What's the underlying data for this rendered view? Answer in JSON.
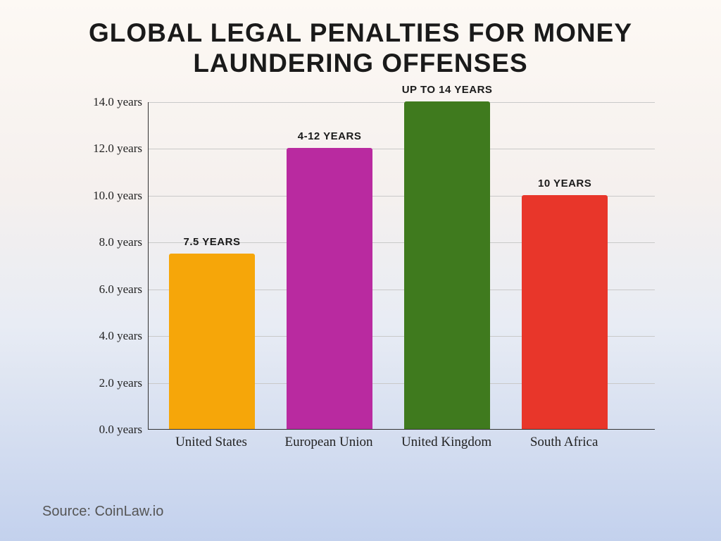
{
  "title": "Global Legal Penalties for Money Laundering Offenses",
  "title_fontsize": 37,
  "source": "Source: CoinLaw.io",
  "source_fontsize": 20,
  "chart": {
    "type": "bar",
    "ylim": [
      0,
      14
    ],
    "ytick_step": 2.0,
    "ytick_suffix": " years",
    "ylabel_fontsize": 17,
    "xlabel_fontsize": 19,
    "barlabel_fontsize": 15,
    "grid_color": "#c9c9c9",
    "axis_color": "#333333",
    "bar_width_pct": 17,
    "bar_gap_pct": 6.2,
    "bar_start_pct": 4,
    "bars": [
      {
        "category": "United States",
        "value": 7.5,
        "label": "7.5 years",
        "color": "#f6a609"
      },
      {
        "category": "European Union",
        "value": 12,
        "label": "4-12 years",
        "color": "#b92aa0"
      },
      {
        "category": "United Kingdom",
        "value": 14,
        "label": "up to 14 years",
        "color": "#3f7a1e"
      },
      {
        "category": "South Africa",
        "value": 10,
        "label": "10 years",
        "color": "#e8362a"
      }
    ]
  }
}
